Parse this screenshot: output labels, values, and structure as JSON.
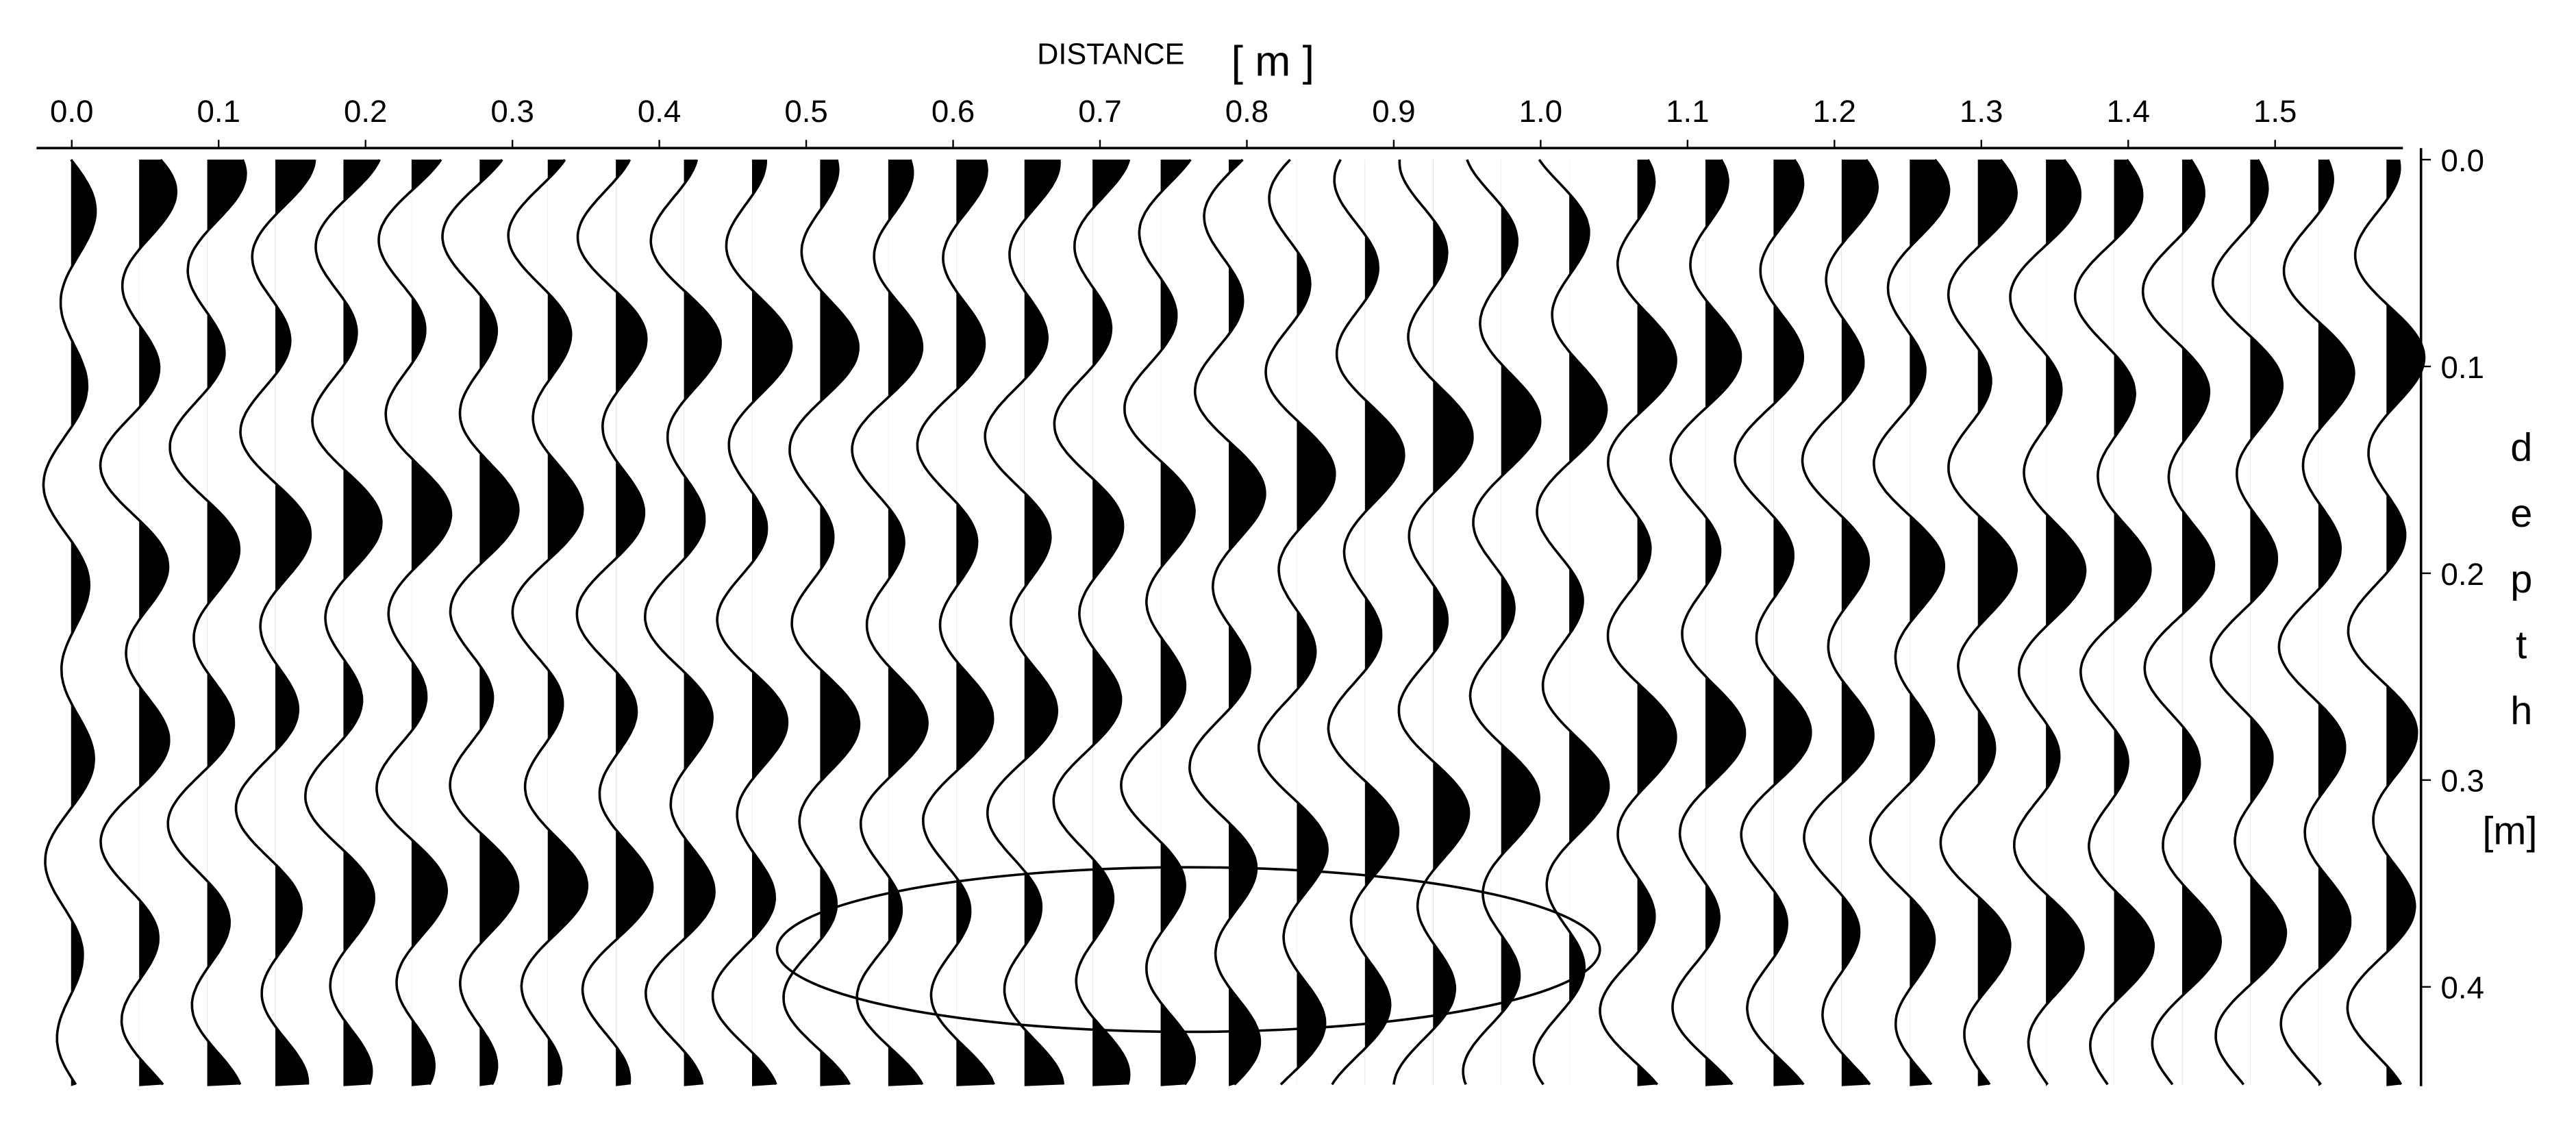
{
  "chart_data": {
    "type": "wiggle",
    "xlabel": "DISTANCE",
    "xlabel_unit": "[ m ]",
    "ylabel": "depth",
    "ylabel_unit": "[m]",
    "xlim": [
      -0.024,
      1.587
    ],
    "xticks": [
      {
        "value": 0,
        "label": "0.0"
      },
      0.1,
      0.2,
      0.3,
      0.4,
      0.5,
      0.6,
      0.7,
      0.8,
      0.9,
      {
        "value": 1,
        "label": "1.0"
      },
      1.1,
      1.2,
      1.3,
      1.4,
      1.5
    ],
    "ylim": [
      0,
      0.448
    ],
    "yticks": [
      {
        "value": 0,
        "label": "0.0"
      },
      0.1,
      0.2,
      0.3,
      0.4
    ],
    "color": "#000000"
  }
}
